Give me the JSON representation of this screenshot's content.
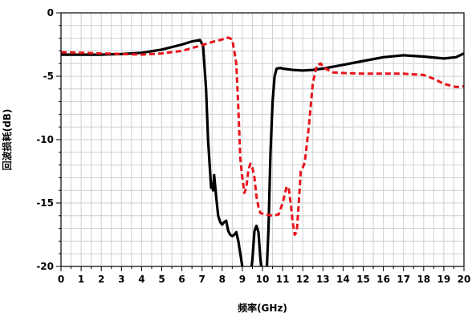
{
  "chart_data": {
    "type": "line",
    "title": "",
    "xlabel": "频率(GHz)",
    "ylabel": "回波损耗(dB)",
    "xlim": [
      0,
      20
    ],
    "ylim": [
      -20,
      0
    ],
    "grid": true,
    "x_ticks": [
      "0",
      "1",
      "2",
      "3",
      "4",
      "5",
      "6",
      "7",
      "8",
      "9",
      "10",
      "11",
      "12",
      "13",
      "14",
      "15",
      "16",
      "17",
      "18",
      "19",
      "20"
    ],
    "y_ticks": [
      "0",
      "-5",
      "-10",
      "-15",
      "-20"
    ],
    "series": [
      {
        "color": "#000000",
        "style": "solid",
        "points": [
          [
            0.0,
            -3.3
          ],
          [
            1.0,
            -3.3
          ],
          [
            2.0,
            -3.3
          ],
          [
            3.0,
            -3.25
          ],
          [
            4.0,
            -3.15
          ],
          [
            5.0,
            -2.9
          ],
          [
            6.0,
            -2.5
          ],
          [
            6.5,
            -2.25
          ],
          [
            6.9,
            -2.15
          ],
          [
            7.05,
            -2.6
          ],
          [
            7.2,
            -6.0
          ],
          [
            7.3,
            -10.0
          ],
          [
            7.4,
            -12.5
          ],
          [
            7.45,
            -13.8
          ],
          [
            7.5,
            -13.5
          ],
          [
            7.55,
            -14.0
          ],
          [
            7.6,
            -12.8
          ],
          [
            7.7,
            -14.5
          ],
          [
            7.8,
            -16.0
          ],
          [
            7.9,
            -16.5
          ],
          [
            8.0,
            -16.7
          ],
          [
            8.1,
            -16.5
          ],
          [
            8.2,
            -16.4
          ],
          [
            8.3,
            -17.2
          ],
          [
            8.4,
            -17.5
          ],
          [
            8.5,
            -17.6
          ],
          [
            8.6,
            -17.5
          ],
          [
            8.7,
            -17.3
          ],
          [
            8.8,
            -18.0
          ],
          [
            8.9,
            -19.0
          ],
          [
            9.0,
            -20.0
          ],
          [
            9.1,
            -20.8
          ],
          [
            9.4,
            -20.8
          ],
          [
            9.5,
            -19.5
          ],
          [
            9.6,
            -17.2
          ],
          [
            9.7,
            -16.8
          ],
          [
            9.8,
            -17.3
          ],
          [
            9.9,
            -19.5
          ],
          [
            10.0,
            -20.8
          ],
          [
            10.2,
            -20.8
          ],
          [
            10.3,
            -17.0
          ],
          [
            10.4,
            -11.0
          ],
          [
            10.5,
            -7.0
          ],
          [
            10.6,
            -5.0
          ],
          [
            10.7,
            -4.4
          ],
          [
            10.9,
            -4.35
          ],
          [
            11.0,
            -4.4
          ],
          [
            11.5,
            -4.5
          ],
          [
            12.0,
            -4.55
          ],
          [
            12.5,
            -4.5
          ],
          [
            13.0,
            -4.4
          ],
          [
            14.0,
            -4.1
          ],
          [
            15.0,
            -3.8
          ],
          [
            16.0,
            -3.5
          ],
          [
            17.0,
            -3.35
          ],
          [
            18.0,
            -3.45
          ],
          [
            19.0,
            -3.6
          ],
          [
            19.6,
            -3.5
          ],
          [
            20.0,
            -3.2
          ]
        ]
      },
      {
        "color": "#e8141c",
        "style": "dashed",
        "points": [
          [
            0.0,
            -3.1
          ],
          [
            1.0,
            -3.15
          ],
          [
            2.0,
            -3.2
          ],
          [
            3.0,
            -3.25
          ],
          [
            4.0,
            -3.3
          ],
          [
            5.0,
            -3.2
          ],
          [
            6.0,
            -3.0
          ],
          [
            7.0,
            -2.55
          ],
          [
            7.5,
            -2.3
          ],
          [
            8.0,
            -2.1
          ],
          [
            8.3,
            -1.95
          ],
          [
            8.5,
            -2.1
          ],
          [
            8.7,
            -4.0
          ],
          [
            8.8,
            -7.5
          ],
          [
            8.9,
            -11.5
          ],
          [
            9.0,
            -13.0
          ],
          [
            9.1,
            -14.2
          ],
          [
            9.2,
            -13.8
          ],
          [
            9.3,
            -12.4
          ],
          [
            9.4,
            -11.9
          ],
          [
            9.5,
            -12.2
          ],
          [
            9.6,
            -13.0
          ],
          [
            9.7,
            -14.5
          ],
          [
            9.8,
            -15.3
          ],
          [
            9.9,
            -15.8
          ],
          [
            10.2,
            -15.9
          ],
          [
            10.5,
            -16.0
          ],
          [
            10.8,
            -15.9
          ],
          [
            11.0,
            -15.0
          ],
          [
            11.2,
            -13.7
          ],
          [
            11.3,
            -13.8
          ],
          [
            11.4,
            -15.0
          ],
          [
            11.5,
            -16.5
          ],
          [
            11.6,
            -17.5
          ],
          [
            11.7,
            -17.3
          ],
          [
            11.8,
            -15.0
          ],
          [
            11.9,
            -12.5
          ],
          [
            12.0,
            -12.2
          ],
          [
            12.1,
            -11.8
          ],
          [
            12.3,
            -9.0
          ],
          [
            12.5,
            -5.5
          ],
          [
            12.7,
            -4.1
          ],
          [
            12.9,
            -4.0
          ],
          [
            13.0,
            -4.3
          ],
          [
            13.5,
            -4.7
          ],
          [
            14.0,
            -4.75
          ],
          [
            15.0,
            -4.8
          ],
          [
            16.0,
            -4.8
          ],
          [
            17.0,
            -4.8
          ],
          [
            18.0,
            -4.9
          ],
          [
            18.5,
            -5.2
          ],
          [
            19.0,
            -5.6
          ],
          [
            19.6,
            -5.85
          ],
          [
            20.0,
            -5.8
          ]
        ]
      }
    ]
  }
}
